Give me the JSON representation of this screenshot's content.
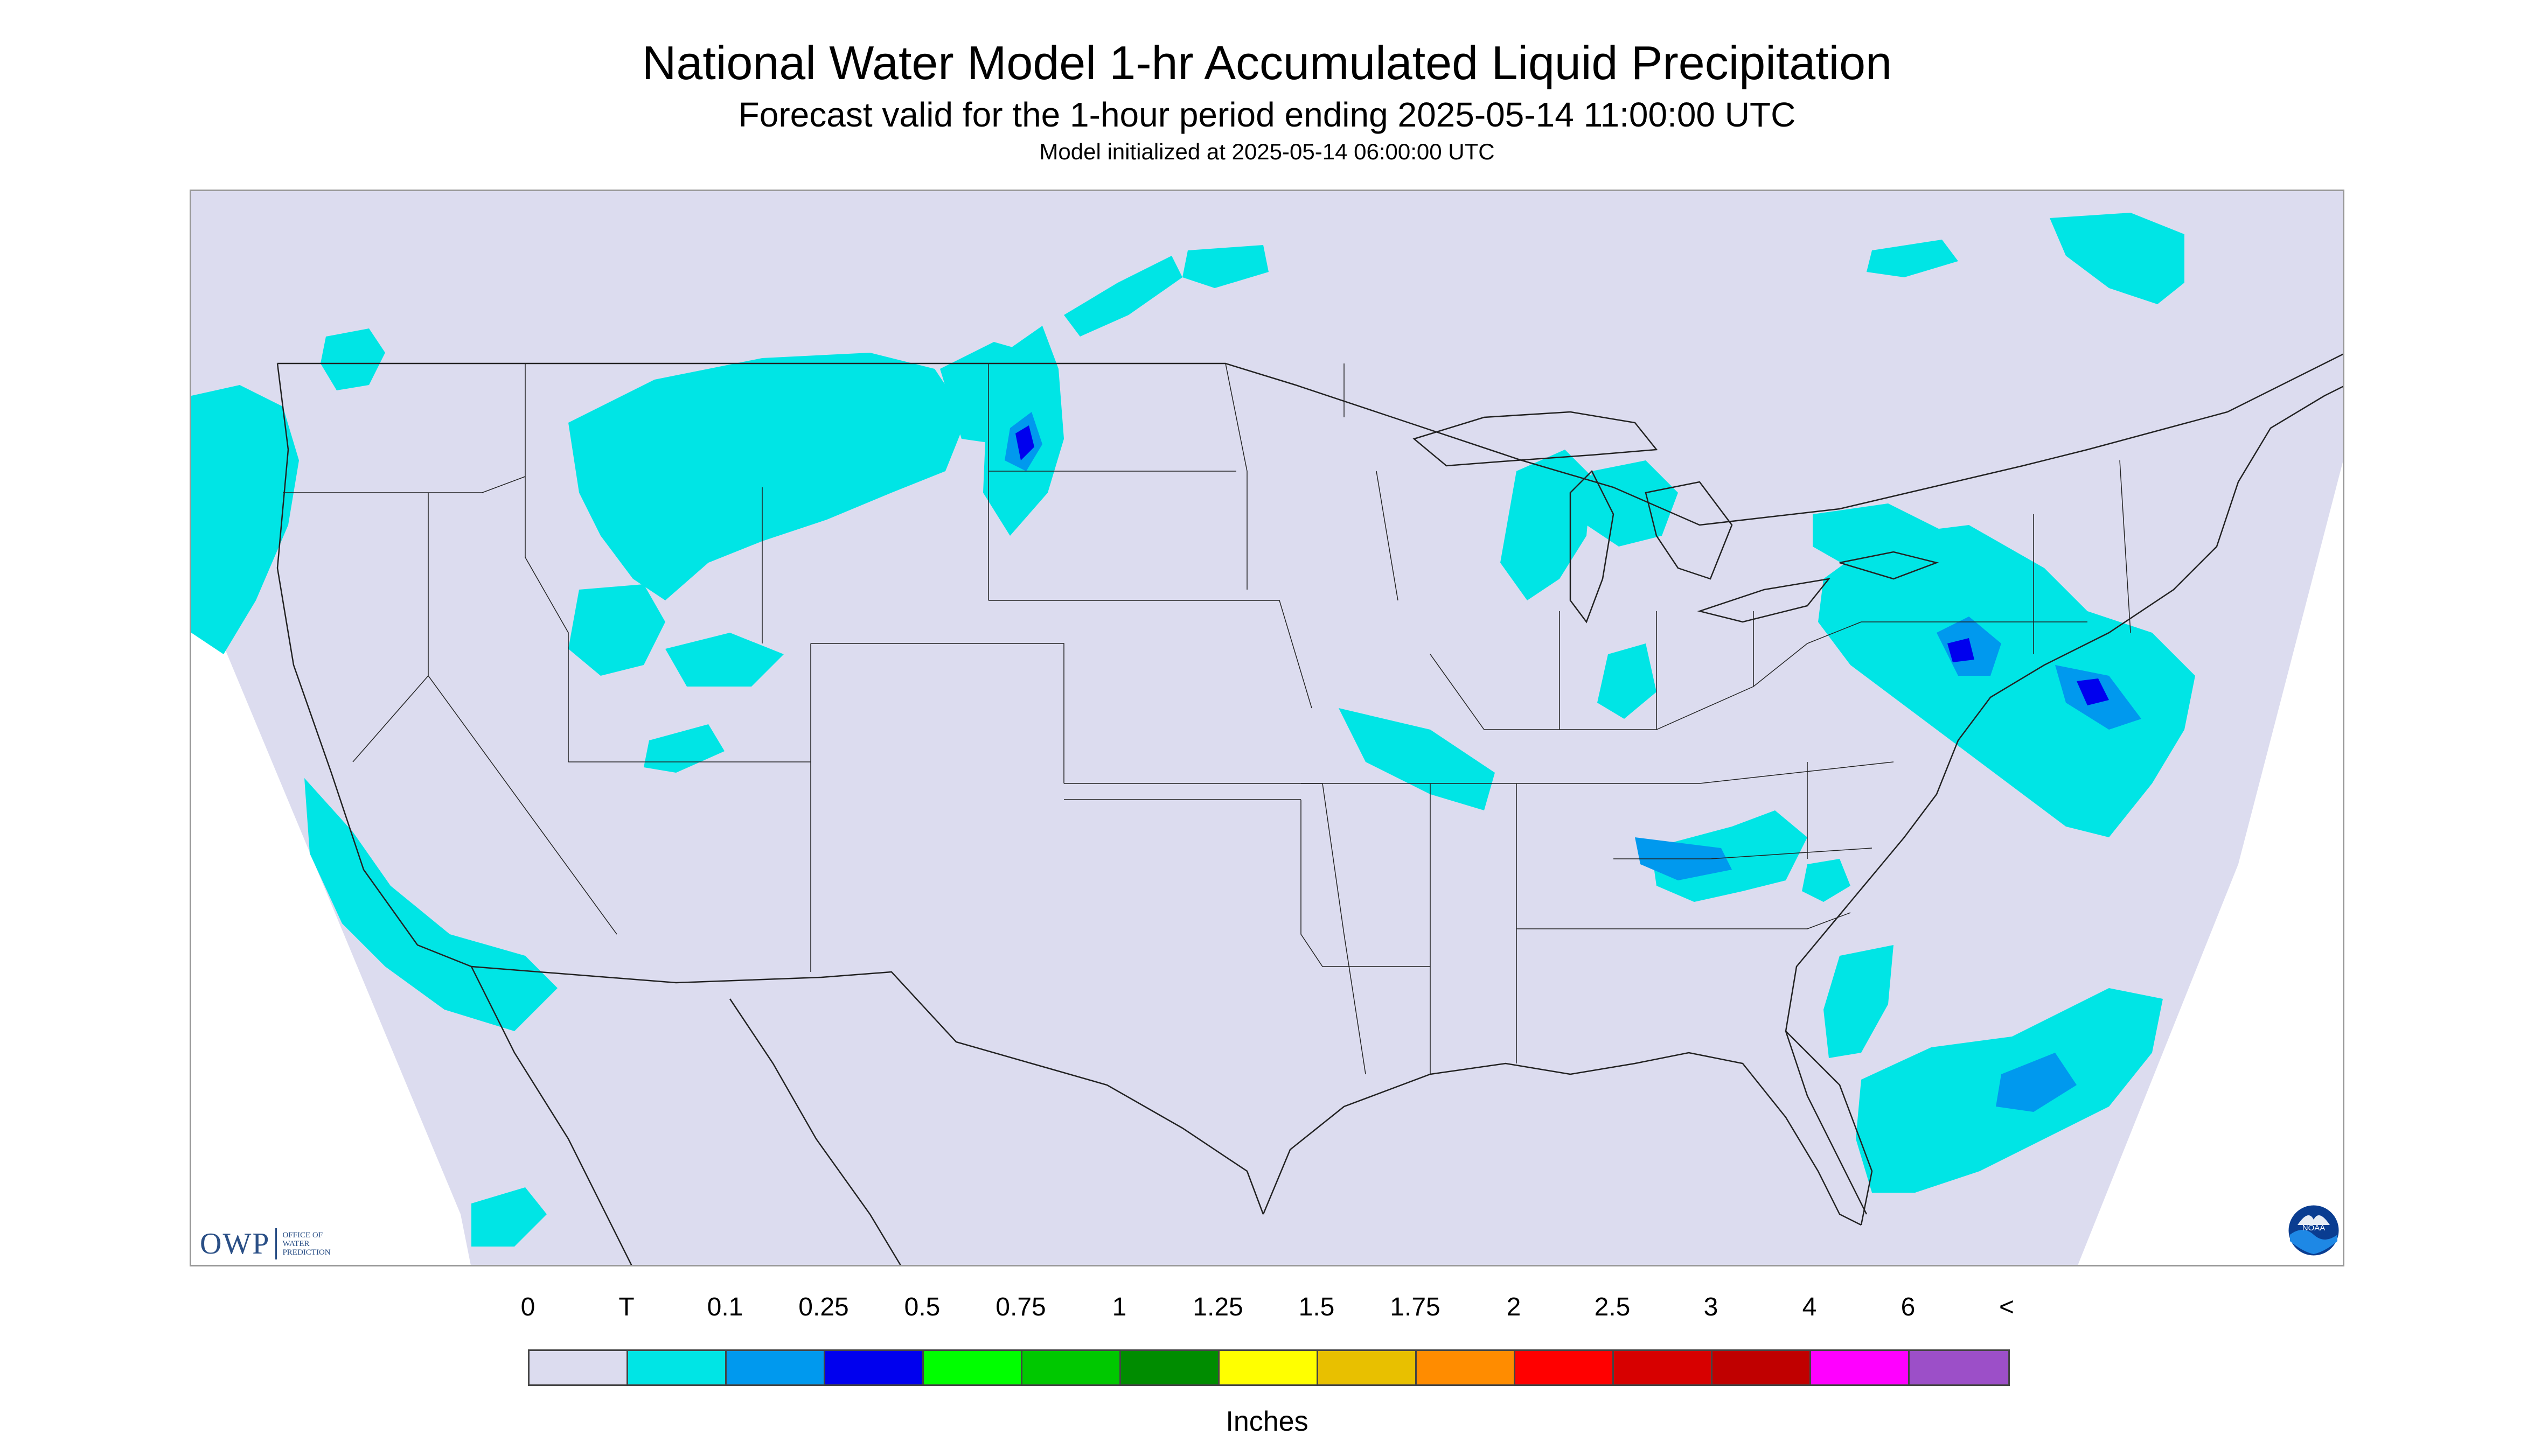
{
  "title": "National Water Model 1-hr Accumulated Liquid Precipitation",
  "subtitle": "Forecast valid for the 1-hour period ending 2025-05-14 11:00:00 UTC",
  "init_line": "Model initialized at 2025-05-14 06:00:00 UTC",
  "logos": {
    "owp_letters": "OWP",
    "owp_subtext": "OFFICE OF\nWATER\nPREDICTION",
    "noaa": "NOAA"
  },
  "colors": {
    "background": "#dcdcef",
    "outside_domain": "#ffffff",
    "trace": "#00e5e5",
    "light": "#0099ee",
    "moderate": "#0000ee",
    "borders": "#222222"
  },
  "legend": {
    "ticks": [
      "0",
      "T",
      "0.1",
      "0.25",
      "0.5",
      "0.75",
      "1",
      "1.25",
      "1.5",
      "1.75",
      "2",
      "2.5",
      "3",
      "4",
      "6",
      "<"
    ],
    "bins": [
      {
        "color": "#dcdcef"
      },
      {
        "color": "#00e5e5"
      },
      {
        "color": "#0099ee"
      },
      {
        "color": "#0000ee"
      },
      {
        "color": "#00ff00"
      },
      {
        "color": "#00c800"
      },
      {
        "color": "#008c00"
      },
      {
        "color": "#ffff00"
      },
      {
        "color": "#e8c000"
      },
      {
        "color": "#ff8c00"
      },
      {
        "color": "#ff0000"
      },
      {
        "color": "#d70000"
      },
      {
        "color": "#c00000"
      },
      {
        "color": "#ff00ff"
      },
      {
        "color": "#9c4fc8"
      }
    ],
    "units": "Inches"
  }
}
